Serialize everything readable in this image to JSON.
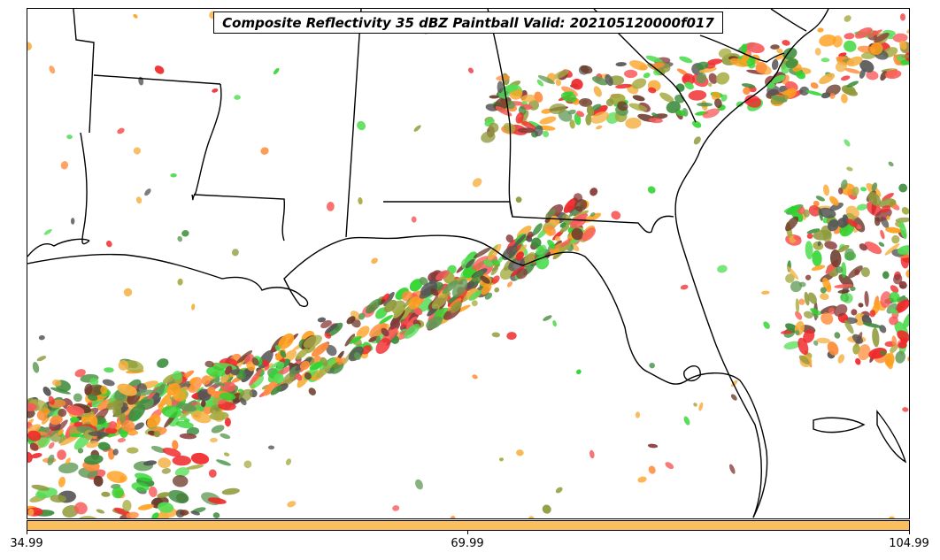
{
  "title": "Composite Reflectivity 35 dBZ Paintball Valid: 202105120000f017",
  "colorbar": {
    "color": "#fcbf5f",
    "ticks": [
      "34.99",
      "69.99",
      "104.99"
    ]
  },
  "member_colors": [
    "#f0282a",
    "#f85a5a",
    "#ff8c3a",
    "#ffa020",
    "#f5b042",
    "#2ed42e",
    "#55dd55",
    "#3c8c3c",
    "#5f9a55",
    "#8f9a3a",
    "#a6ac42",
    "#6b3a2a",
    "#8a3a3a",
    "#555555"
  ],
  "chart_data": {
    "type": "map",
    "title": "Composite Reflectivity 35 dBZ Paintball Valid: 202105120000f017",
    "colorbar_ticks": [
      34.99,
      69.99,
      104.99
    ],
    "colorbar_range": [
      34.99,
      104.99
    ],
    "region": "Southeastern United States / Gulf of Mexico",
    "threshold_dbz": 35,
    "valid": "202105120000f017"
  }
}
